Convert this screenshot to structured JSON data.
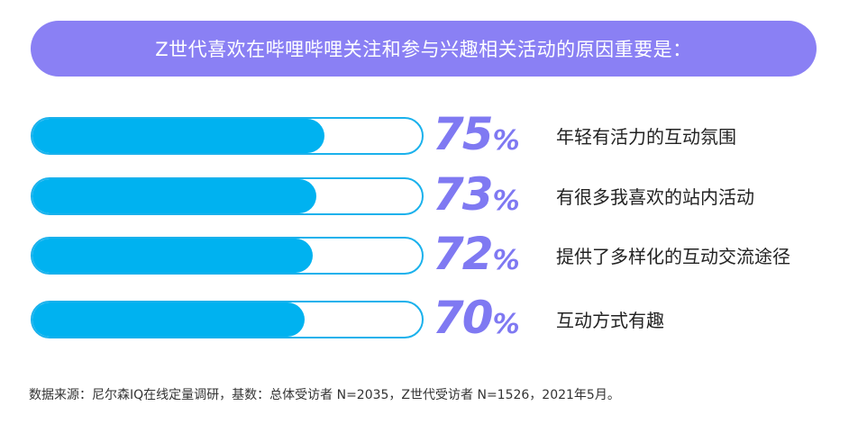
{
  "header": {
    "title": "Z世代喜欢在哔哩哔哩关注和参与兴趣相关活动的原因重要是："
  },
  "chart_data": {
    "type": "bar",
    "orientation": "horizontal",
    "title": "Z世代喜欢在哔哩哔哩关注和参与兴趣相关活动的原因重要是：",
    "xlim": [
      0,
      100
    ],
    "unit": "%",
    "categories": [
      "年轻有活力的互动氛围",
      "有很多我喜欢的站内活动",
      "提供了多样化的互动交流途径",
      "互动方式有趣"
    ],
    "values": [
      75,
      73,
      72,
      70
    ],
    "value_labels": [
      "75",
      "73",
      "72",
      "70"
    ],
    "percent_sign": "%",
    "colors": {
      "bar_fill": "#00b2f0",
      "bar_border": "#1ab1ec",
      "value_text": "#7f79f2",
      "banner": "#8a80f4"
    }
  },
  "footer": {
    "source": "数据来源：尼尔森IQ在线定量调研，基数：总体受访者 N=2035，Z世代受访者 N=1526，2021年5月。"
  }
}
